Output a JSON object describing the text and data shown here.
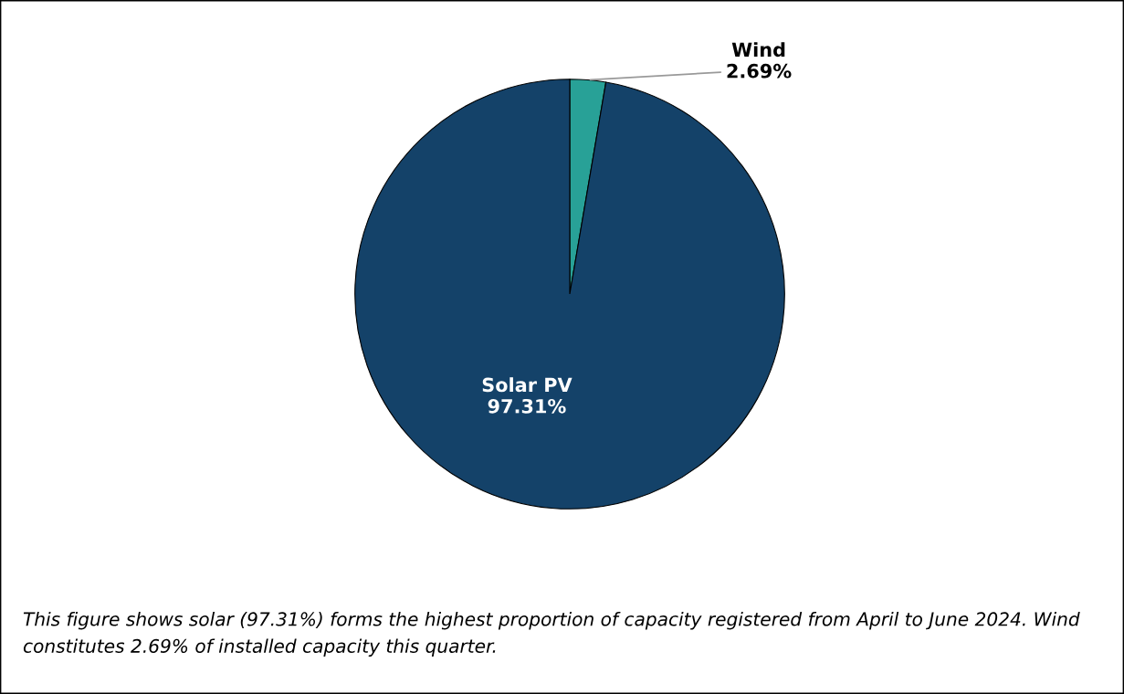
{
  "chart_data": {
    "type": "pie",
    "categories": [
      "Wind",
      "Solar PV"
    ],
    "values": [
      2.69,
      97.31
    ],
    "colors": [
      "#28a197",
      "#144269"
    ],
    "value_labels": [
      "2.69%",
      "97.31%"
    ],
    "legend": false,
    "annotations": [
      "This figure shows solar (97.31%) forms the highest proportion of capacity registered from April to June 2024. Wind constitutes 2.69% of installed capacity this quarter."
    ]
  }
}
